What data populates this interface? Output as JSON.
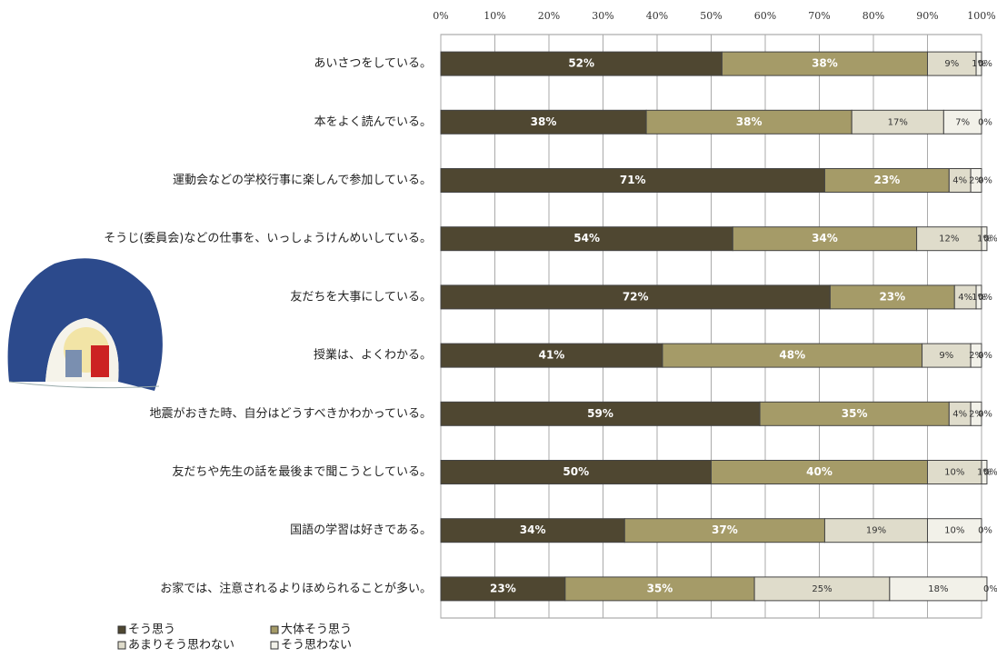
{
  "chart_data": {
    "type": "stacked_bar_horizontal",
    "categories": [
      "あいさつをしている。",
      "本をよく読んでいる。",
      "運動会などの学校行事に楽しんで参加している。",
      "そうじ(委員会)などの仕事を、いっしょうけんめいしている。",
      "友だちを大事にしている。",
      "授業は、よくわかる。",
      "地震がおきた時、自分はどうすべきかわかっている。",
      "友だちや先生の話を最後まで聞こうとしている。",
      "国語の学習は好きである。",
      "お家では、注意されるよりほめられることが多い。"
    ],
    "series": [
      {
        "name": "そう思う",
        "color": "#4f4731",
        "values": [
          52,
          38,
          71,
          54,
          72,
          41,
          59,
          50,
          34,
          23
        ],
        "value_labels": [
          "52%",
          "38%",
          "71%",
          "54%",
          "72%",
          "41%",
          "59%",
          "50%",
          "34%",
          "23%"
        ]
      },
      {
        "name": "大体そう思う",
        "color": "#a59b68",
        "values": [
          38,
          38,
          23,
          34,
          23,
          48,
          35,
          40,
          37,
          35
        ],
        "value_labels": [
          "38%",
          "38%",
          "23%",
          "34%",
          "23%",
          "48%",
          "35%",
          "40%",
          "37%",
          "35%"
        ]
      },
      {
        "name": "あまりそう思わない",
        "color": "#dfdccb",
        "values": [
          9,
          17,
          4,
          12,
          4,
          9,
          4,
          10,
          19,
          25
        ],
        "value_labels": [
          "9%",
          "17%",
          "4%",
          "12%",
          "4%",
          "9%",
          "4%",
          "10%",
          "19%",
          "25%"
        ]
      },
      {
        "name": "そう思わない",
        "color": "#f2f1e9",
        "values": [
          1,
          7,
          2,
          1,
          1,
          2,
          2,
          1,
          10,
          18
        ],
        "value_labels": [
          "1%",
          "7%",
          "2%",
          "1%",
          "1%",
          "2%",
          "2%",
          "1%",
          "10%",
          "18%"
        ]
      },
      {
        "color": "#ffffff",
        "values": [
          0,
          0,
          0,
          0,
          0,
          0,
          0,
          0,
          0,
          0
        ],
        "value_labels": [
          "0%",
          "0%",
          "0%",
          "0%",
          "0%",
          "0%",
          "0%",
          "0%",
          "0%",
          "0%"
        ]
      }
    ],
    "xlim": [
      0,
      100
    ],
    "xticks": [
      {
        "value": 0,
        "label": "0%"
      },
      {
        "value": 10,
        "label": "10%"
      },
      {
        "value": 20,
        "label": "20%"
      },
      {
        "value": 30,
        "label": "30%"
      },
      {
        "value": 40,
        "label": "40%"
      },
      {
        "value": 50,
        "label": "50%"
      },
      {
        "value": 60,
        "label": "60%"
      },
      {
        "value": 70,
        "label": "70%"
      },
      {
        "value": 80,
        "label": "80%"
      },
      {
        "value": 90,
        "label": "90%"
      },
      {
        "value": 100,
        "label": "100%"
      }
    ],
    "grid": true
  }
}
